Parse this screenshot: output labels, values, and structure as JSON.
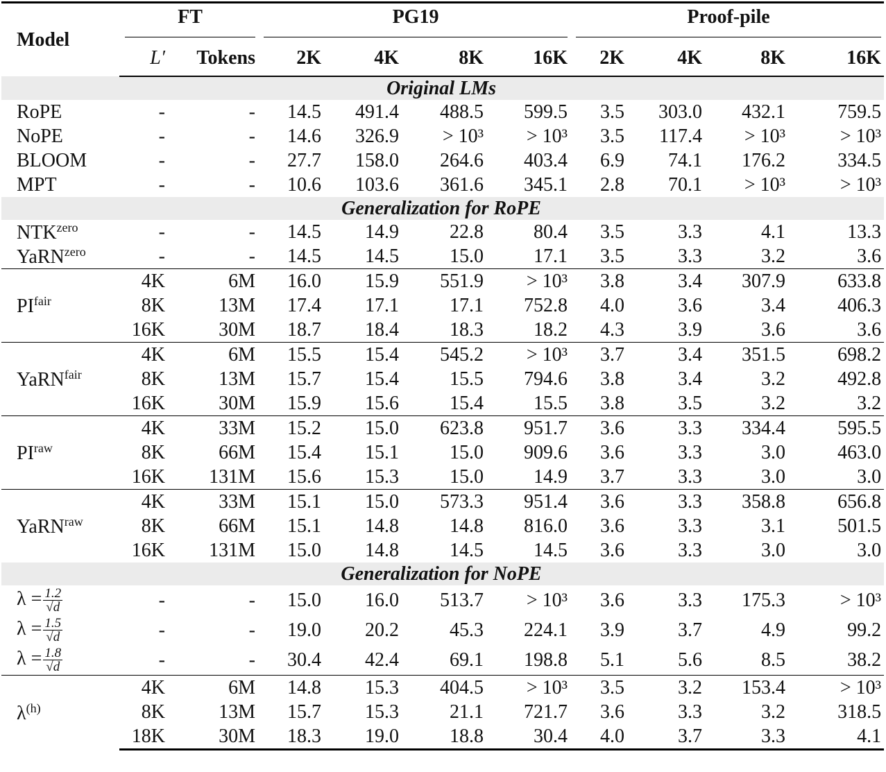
{
  "header": {
    "model": "Model",
    "ft": "FT",
    "pg19": "PG19",
    "proofpile": "Proof-pile",
    "ft_cols": [
      "L′",
      "Tokens"
    ],
    "pg19_cols": [
      "2K",
      "4K",
      "8K",
      "16K"
    ],
    "proofpile_cols": [
      "2K",
      "4K",
      "8K",
      "16K"
    ]
  },
  "sections": [
    {
      "title": "Original LMs",
      "blocks": [
        {
          "entries": [
            {
              "model": {
                "name": "RoPE"
              },
              "rows": [
                [
                  "-",
                  "-",
                  "14.5",
                  "491.4",
                  "488.5",
                  "599.5",
                  "3.5",
                  "303.0",
                  "432.1",
                  "759.5"
                ]
              ]
            },
            {
              "model": {
                "name": "NoPE"
              },
              "rows": [
                [
                  "-",
                  "-",
                  "14.6",
                  "326.9",
                  "> 10³",
                  "> 10³",
                  "3.5",
                  "117.4",
                  "> 10³",
                  "> 10³"
                ]
              ]
            },
            {
              "model": {
                "name": "BLOOM"
              },
              "rows": [
                [
                  "-",
                  "-",
                  "27.7",
                  "158.0",
                  "264.6",
                  "403.4",
                  "6.9",
                  "74.1",
                  "176.2",
                  "334.5"
                ]
              ]
            },
            {
              "model": {
                "name": "MPT"
              },
              "rows": [
                [
                  "-",
                  "-",
                  "10.6",
                  "103.6",
                  "361.6",
                  "345.1",
                  "2.8",
                  "70.1",
                  "> 10³",
                  "> 10³"
                ]
              ]
            }
          ]
        }
      ]
    },
    {
      "title": "Generalization for RoPE",
      "blocks": [
        {
          "entries": [
            {
              "model": {
                "name": "NTK",
                "sup": "zero"
              },
              "rows": [
                [
                  "-",
                  "-",
                  "14.5",
                  "14.9",
                  "22.8",
                  "80.4",
                  "3.5",
                  "3.3",
                  "4.1",
                  "13.3"
                ]
              ]
            },
            {
              "model": {
                "name": "YaRN",
                "sup": "zero"
              },
              "rows": [
                [
                  "-",
                  "-",
                  "14.5",
                  "14.5",
                  "15.0",
                  "17.1",
                  "3.5",
                  "3.3",
                  "3.2",
                  "3.6"
                ]
              ]
            }
          ]
        },
        {
          "entries": [
            {
              "model": {
                "name": "PI",
                "sup": "fair"
              },
              "rows": [
                [
                  "4K",
                  "6M",
                  "16.0",
                  "15.9",
                  "551.9",
                  "> 10³",
                  "3.8",
                  "3.4",
                  "307.9",
                  "633.8"
                ],
                [
                  "8K",
                  "13M",
                  "17.4",
                  "17.1",
                  "17.1",
                  "752.8",
                  "4.0",
                  "3.6",
                  "3.4",
                  "406.3"
                ],
                [
                  "16K",
                  "30M",
                  "18.7",
                  "18.4",
                  "18.3",
                  "18.2",
                  "4.3",
                  "3.9",
                  "3.6",
                  "3.6"
                ]
              ]
            }
          ]
        },
        {
          "entries": [
            {
              "model": {
                "name": "YaRN",
                "sup": "fair"
              },
              "rows": [
                [
                  "4K",
                  "6M",
                  "15.5",
                  "15.4",
                  "545.2",
                  "> 10³",
                  "3.7",
                  "3.4",
                  "351.5",
                  "698.2"
                ],
                [
                  "8K",
                  "13M",
                  "15.7",
                  "15.4",
                  "15.5",
                  "794.6",
                  "3.8",
                  "3.4",
                  "3.2",
                  "492.8"
                ],
                [
                  "16K",
                  "30M",
                  "15.9",
                  "15.6",
                  "15.4",
                  "15.5",
                  "3.8",
                  "3.5",
                  "3.2",
                  "3.2"
                ]
              ]
            }
          ]
        },
        {
          "entries": [
            {
              "model": {
                "name": "PI",
                "sup": "raw"
              },
              "rows": [
                [
                  "4K",
                  "33M",
                  "15.2",
                  "15.0",
                  "623.8",
                  "951.7",
                  "3.6",
                  "3.3",
                  "334.4",
                  "595.5"
                ],
                [
                  "8K",
                  "66M",
                  "15.4",
                  "15.1",
                  "15.0",
                  "909.6",
                  "3.6",
                  "3.3",
                  "3.0",
                  "463.0"
                ],
                [
                  "16K",
                  "131M",
                  "15.6",
                  "15.3",
                  "15.0",
                  "14.9",
                  "3.7",
                  "3.3",
                  "3.0",
                  "3.0"
                ]
              ]
            }
          ]
        },
        {
          "entries": [
            {
              "model": {
                "name": "YaRN",
                "sup": "raw"
              },
              "rows": [
                [
                  "4K",
                  "33M",
                  "15.1",
                  "15.0",
                  "573.3",
                  "951.4",
                  "3.6",
                  "3.3",
                  "358.8",
                  "656.8"
                ],
                [
                  "8K",
                  "66M",
                  "15.1",
                  "14.8",
                  "14.8",
                  "816.0",
                  "3.6",
                  "3.3",
                  "3.1",
                  "501.5"
                ],
                [
                  "16K",
                  "131M",
                  "15.0",
                  "14.8",
                  "14.5",
                  "14.5",
                  "3.6",
                  "3.3",
                  "3.0",
                  "3.0"
                ]
              ]
            }
          ]
        }
      ]
    },
    {
      "title": "Generalization for NoPE",
      "blocks": [
        {
          "entries": [
            {
              "model": {
                "name": "λ =",
                "num": "1.2",
                "den": "√d"
              },
              "rows": [
                [
                  "-",
                  "-",
                  "15.0",
                  "16.0",
                  "513.7",
                  "> 10³",
                  "3.6",
                  "3.3",
                  "175.3",
                  "> 10³"
                ]
              ]
            },
            {
              "model": {
                "name": "λ =",
                "num": "1.5",
                "den": "√d"
              },
              "rows": [
                [
                  "-",
                  "-",
                  "19.0",
                  "20.2",
                  "45.3",
                  "224.1",
                  "3.9",
                  "3.7",
                  "4.9",
                  "99.2"
                ]
              ]
            },
            {
              "model": {
                "name": "λ =",
                "num": "1.8",
                "den": "√d"
              },
              "rows": [
                [
                  "-",
                  "-",
                  "30.4",
                  "42.4",
                  "69.1",
                  "198.8",
                  "5.1",
                  "5.6",
                  "8.5",
                  "38.2"
                ]
              ]
            }
          ]
        },
        {
          "entries": [
            {
              "model": {
                "name": "λ",
                "sup": "(h)"
              },
              "rows": [
                [
                  "4K",
                  "6M",
                  "14.8",
                  "15.3",
                  "404.5",
                  "> 10³",
                  "3.5",
                  "3.2",
                  "153.4",
                  "> 10³"
                ],
                [
                  "8K",
                  "13M",
                  "15.7",
                  "15.3",
                  "21.1",
                  "721.7",
                  "3.6",
                  "3.3",
                  "3.2",
                  "318.5"
                ],
                [
                  "18K",
                  "30M",
                  "18.3",
                  "19.0",
                  "18.8",
                  "30.4",
                  "4.0",
                  "3.7",
                  "3.3",
                  "4.1"
                ]
              ]
            }
          ]
        }
      ]
    }
  ]
}
